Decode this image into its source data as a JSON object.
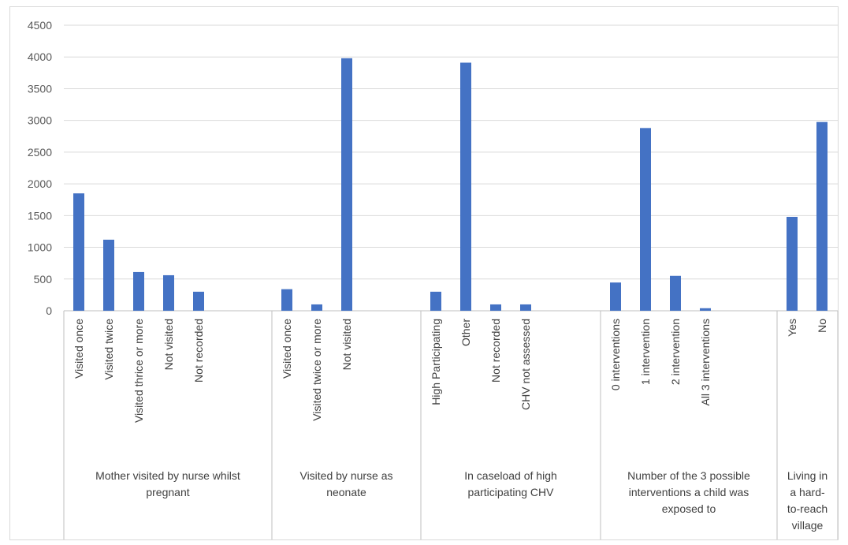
{
  "chart_data": {
    "type": "bar",
    "ylim": [
      0,
      4500
    ],
    "yticks": [
      0,
      500,
      1000,
      1500,
      2000,
      2500,
      3000,
      3500,
      4000,
      4500
    ],
    "grid": true,
    "legend": "none",
    "colors": {
      "bar": "#4472c4",
      "grid": "#d9d9d9",
      "axis": "#bfbfbf"
    },
    "groups": [
      {
        "label_lines": [
          "Mother visited by nurse whilst",
          "pregnant"
        ],
        "categories": [
          "Visited once",
          "Visited twice",
          "Visited thrice or more",
          "Not visited",
          "Not recorded"
        ],
        "values": [
          1850,
          1120,
          610,
          560,
          300
        ]
      },
      {
        "label_lines": [
          "Visited by nurse as",
          "neonate"
        ],
        "categories": [
          "Visited once",
          "Visited twice or more",
          "Not visited"
        ],
        "values": [
          340,
          100,
          3980
        ]
      },
      {
        "label_lines": [
          "In caseload of high",
          "participating CHV"
        ],
        "categories": [
          "High Participating",
          "Other",
          "Not recorded",
          "CHV not assessed"
        ],
        "values": [
          300,
          3910,
          100,
          100
        ]
      },
      {
        "label_lines": [
          "Number of the 3 possible",
          "interventions a child was",
          "exposed to"
        ],
        "categories": [
          "0 interventions",
          "1 intervention",
          "2 intervention",
          "All 3 interventions"
        ],
        "values": [
          445,
          2880,
          550,
          40
        ]
      },
      {
        "label_lines": [
          "Living in",
          "a hard-",
          "to-reach",
          "village"
        ],
        "categories": [
          "Yes",
          "No"
        ],
        "values": [
          1480,
          2975
        ]
      }
    ]
  }
}
